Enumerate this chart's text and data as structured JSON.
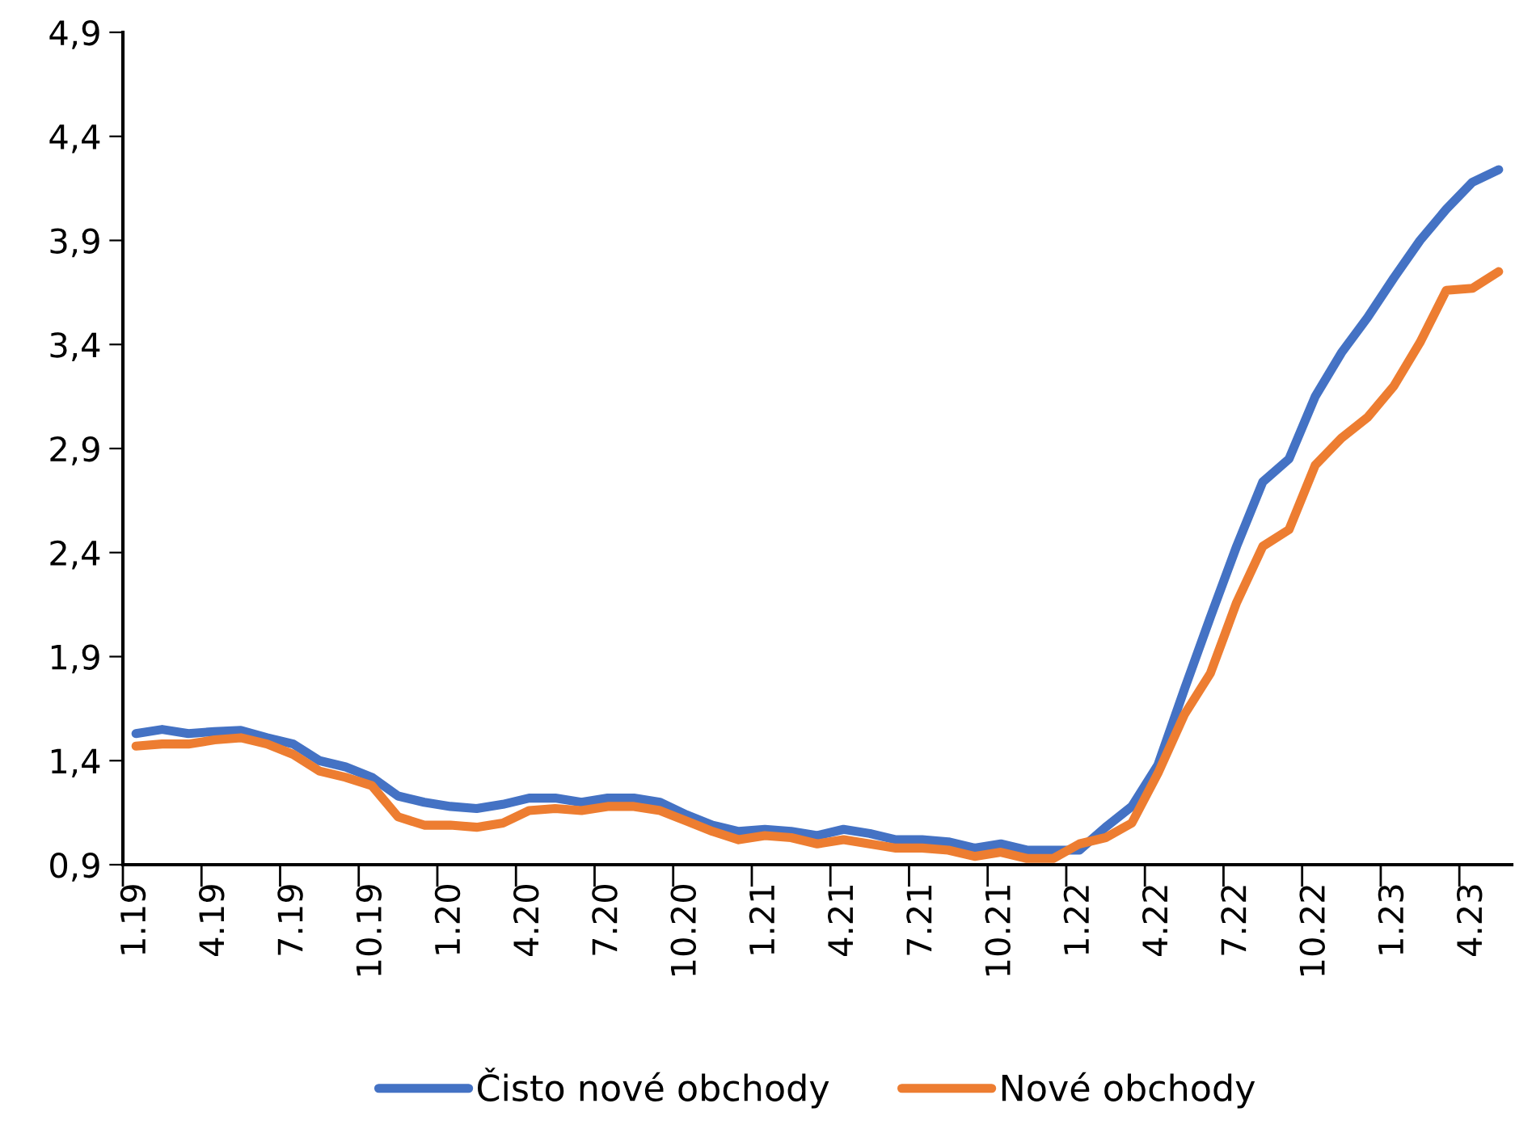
{
  "chart_data": {
    "type": "line",
    "categories": [
      "1.19",
      null,
      null,
      "4.19",
      null,
      null,
      "7.19",
      null,
      null,
      "10.19",
      null,
      null,
      "1.20",
      null,
      null,
      "4.20",
      null,
      null,
      "7.20",
      null,
      null,
      "10.20",
      null,
      null,
      "1.21",
      null,
      null,
      "4.21",
      null,
      null,
      "7.21",
      null,
      null,
      "10.21",
      null,
      null,
      "1.22",
      null,
      null,
      "4.22",
      null,
      null,
      "7.22",
      null,
      null,
      "10.22",
      null,
      null,
      "1.23",
      null,
      null,
      "4.23",
      null
    ],
    "series": [
      {
        "name": "Čisto nové obchody",
        "color": "#4472c4",
        "values": [
          1.53,
          1.55,
          1.53,
          1.54,
          1.545,
          1.51,
          1.48,
          1.4,
          1.37,
          1.32,
          1.23,
          1.2,
          1.18,
          1.17,
          1.19,
          1.22,
          1.22,
          1.2,
          1.22,
          1.22,
          1.2,
          1.14,
          1.09,
          1.06,
          1.07,
          1.06,
          1.04,
          1.07,
          1.05,
          1.02,
          1.02,
          1.01,
          0.98,
          1.0,
          0.97,
          0.97,
          0.97,
          1.08,
          1.18,
          1.38,
          1.74,
          2.09,
          2.43,
          2.74,
          2.85,
          3.15,
          3.36,
          3.53,
          3.72,
          3.9,
          4.05,
          4.18,
          4.24
        ]
      },
      {
        "name": "Nové obchody",
        "color": "#ed7d31",
        "values": [
          1.47,
          1.48,
          1.48,
          1.5,
          1.51,
          1.48,
          1.43,
          1.35,
          1.32,
          1.28,
          1.13,
          1.09,
          1.09,
          1.08,
          1.1,
          1.16,
          1.17,
          1.16,
          1.18,
          1.18,
          1.16,
          1.11,
          1.06,
          1.02,
          1.04,
          1.03,
          1.0,
          1.02,
          1.0,
          0.98,
          0.98,
          0.97,
          0.94,
          0.96,
          0.93,
          0.93,
          1.0,
          1.03,
          1.1,
          1.34,
          1.62,
          1.82,
          2.16,
          2.43,
          2.51,
          2.82,
          2.95,
          3.05,
          3.2,
          3.41,
          3.66,
          3.67,
          3.75
        ]
      }
    ],
    "ylim": [
      0.9,
      4.9
    ],
    "yticks": [
      {
        "value": 0.9,
        "label": "0,9"
      },
      {
        "value": 1.4,
        "label": "1,4"
      },
      {
        "value": 1.9,
        "label": "1,9"
      },
      {
        "value": 2.4,
        "label": "2,4"
      },
      {
        "value": 2.9,
        "label": "2,9"
      },
      {
        "value": 3.4,
        "label": "3,4"
      },
      {
        "value": 3.9,
        "label": "3,9"
      },
      {
        "value": 4.4,
        "label": "4,4"
      },
      {
        "value": 4.9,
        "label": "4,9"
      }
    ],
    "grid": false,
    "legend": "bottom",
    "marker": "none",
    "line_style": "solid"
  }
}
